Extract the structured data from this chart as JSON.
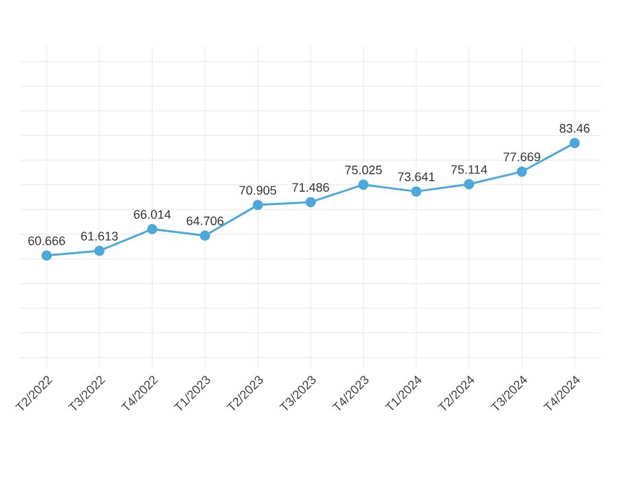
{
  "chart_data": {
    "type": "line",
    "categories": [
      "T2/2022",
      "T3/2022",
      "T4/2022",
      "T1/2023",
      "T2/2023",
      "T3/2023",
      "T4/2023",
      "T1/2024",
      "T2/2024",
      "T3/2024",
      "T4/2024"
    ],
    "values": [
      60.666,
      61.613,
      66.014,
      64.706,
      70.905,
      71.486,
      75.025,
      73.641,
      75.114,
      77.669,
      83.46
    ],
    "value_labels": [
      "60.666",
      "61.613",
      "66.014",
      "64.706",
      "70.905",
      "71.486",
      "75.025",
      "73.641",
      "75.114",
      "77.669",
      "83.46"
    ],
    "color": "#4aa8dc",
    "marker": "circle",
    "line_style": "solid",
    "grid": true,
    "tick_labels": "x",
    "ylim": [
      38,
      103
    ],
    "yticks": [
      {
        "value": 40,
        "label": null
      },
      {
        "value": 45,
        "label": null
      },
      {
        "value": 50,
        "label": null
      },
      {
        "value": 55,
        "label": null
      },
      {
        "value": 60,
        "label": null
      },
      {
        "value": 65,
        "label": null
      },
      {
        "value": 70,
        "label": null
      },
      {
        "value": 75,
        "label": null
      },
      {
        "value": 80,
        "label": null
      },
      {
        "value": 85,
        "label": null
      },
      {
        "value": 90,
        "label": null
      },
      {
        "value": 95,
        "label": null
      },
      {
        "value": 100,
        "label": null
      }
    ]
  }
}
